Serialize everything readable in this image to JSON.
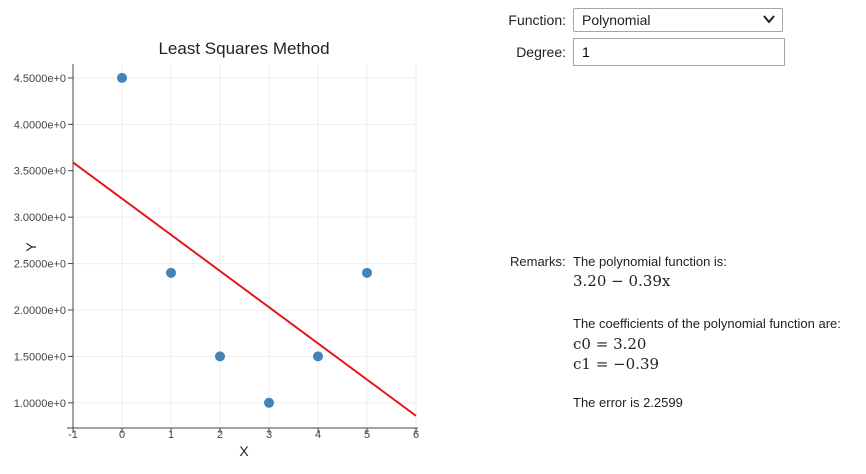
{
  "controls": {
    "function_label": "Function:",
    "function_value": "Polynomial",
    "degree_label": "Degree:",
    "degree_value": "1"
  },
  "remarks": {
    "label": "Remarks:",
    "intro": "The polynomial function is:",
    "function_expr": "3.20 − 0.39x",
    "coef_intro": "The coefficients of the polynomial function are:",
    "c0_name": "c0",
    "c0_value": "= 3.20",
    "c1_name": "c1",
    "c1_value": "= −0.39",
    "error_text": "The error is 2.2599"
  },
  "chart_data": {
    "type": "scatter",
    "title": "Least Squares Method",
    "xlabel": "X",
    "ylabel": "Y",
    "xlim": [
      -1,
      6
    ],
    "ylim": [
      0.75,
      4.65
    ],
    "x_ticks": [
      -1,
      0,
      1,
      2,
      3,
      4,
      5,
      6
    ],
    "x_tick_labels": [
      "-1",
      "0",
      "1",
      "2",
      "3",
      "4",
      "5",
      "6"
    ],
    "y_ticks": [
      1.0,
      1.5,
      2.0,
      2.5,
      3.0,
      3.5,
      4.0,
      4.5
    ],
    "y_tick_labels": [
      "1.0000e+0",
      "1.5000e+0",
      "2.0000e+0",
      "2.5000e+0",
      "3.0000e+0",
      "3.5000e+0",
      "4.0000e+0",
      "4.5000e+0"
    ],
    "grid": true,
    "points": [
      {
        "x": 0,
        "y": 4.5
      },
      {
        "x": 1,
        "y": 2.4
      },
      {
        "x": 2,
        "y": 1.5
      },
      {
        "x": 3,
        "y": 1.0
      },
      {
        "x": 4,
        "y": 1.5
      },
      {
        "x": 5,
        "y": 2.4
      }
    ],
    "fit_line": {
      "x": [
        -1,
        6
      ],
      "y": [
        3.59,
        0.86
      ]
    },
    "point_color": "#4682b4",
    "line_color": "#e31a1c"
  }
}
